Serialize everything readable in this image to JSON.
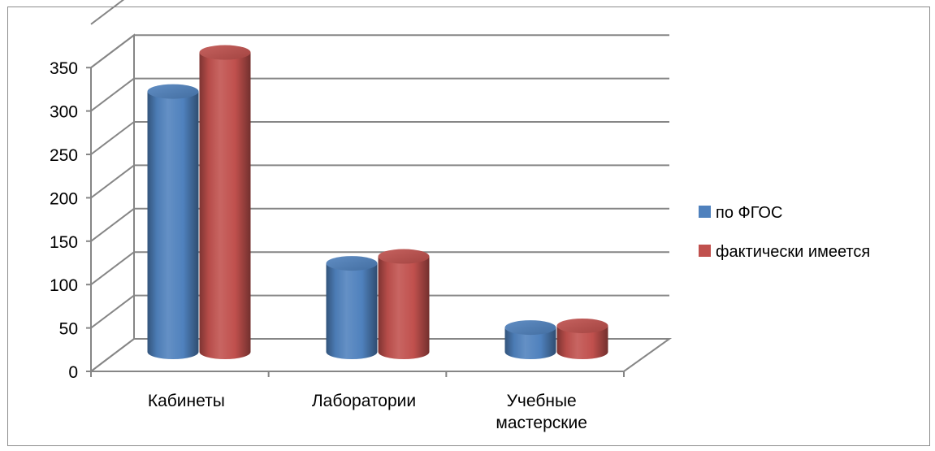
{
  "chart_data": {
    "type": "bar",
    "categories": [
      "Кабинеты",
      "Лаборатории",
      "Учебные мастерские"
    ],
    "category_lines": [
      [
        "Кабинеты"
      ],
      [
        "Лаборатории"
      ],
      [
        "Учебные",
        "мастерские"
      ]
    ],
    "series": [
      {
        "name": "по ФГОС",
        "values": [
          300,
          102,
          28
        ],
        "color": "#4f81bd"
      },
      {
        "name": "фактически имеется",
        "values": [
          345,
          110,
          30
        ],
        "color": "#c0504d"
      }
    ],
    "ylim": [
      0,
      350
    ],
    "yticks": [
      0,
      50,
      100,
      150,
      200,
      250,
      300,
      350
    ],
    "grid": true,
    "legend_position": "right",
    "style": "3d-cylinder"
  }
}
